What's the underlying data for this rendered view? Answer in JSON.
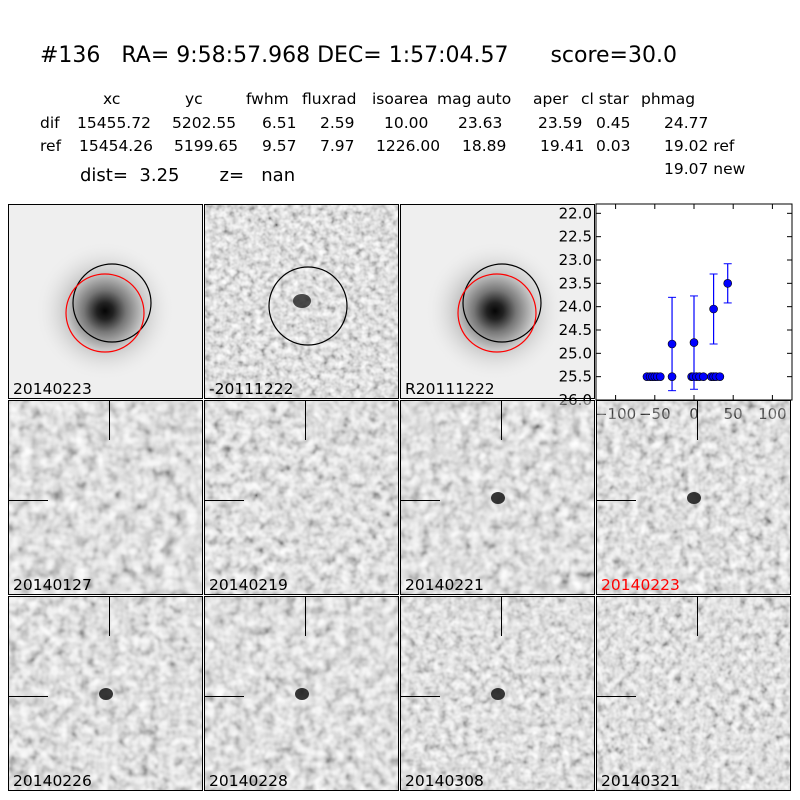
{
  "header": {
    "title": "#136   RA= 9:58:57.968 DEC= 1:57:04.57      score=30.0"
  },
  "table": {
    "columns": [
      "xc",
      "yc",
      "fwhm",
      "fluxrad",
      "isoarea",
      "mag auto",
      "aper",
      "cl star",
      "phmag"
    ],
    "rows": [
      {
        "name": "dif",
        "values": [
          "15455.72",
          "5202.55",
          "6.51",
          "2.59",
          "10.00",
          "23.63",
          "23.59",
          "0.45",
          "24.77"
        ]
      },
      {
        "name": "ref",
        "values": [
          "15454.26",
          "5199.65",
          "9.57",
          "7.97",
          "1226.00",
          "18.89",
          "19.41",
          "0.03",
          "19.02 ref"
        ]
      }
    ],
    "phmag_new": "19.07 new"
  },
  "summary": {
    "dist_label": "dist=",
    "dist_value": "3.25",
    "z_label": "z=",
    "z_value": "nan"
  },
  "stamps_top": [
    {
      "label": "20140223",
      "style": "smooth-bright"
    },
    {
      "label": "-20111222",
      "style": "noisy"
    },
    {
      "label": "R20111222",
      "style": "smooth-bright"
    }
  ],
  "stamps_grid": [
    {
      "label": "20140127",
      "highlight": false
    },
    {
      "label": "20140219",
      "highlight": false
    },
    {
      "label": "20140221",
      "highlight": false
    },
    {
      "label": "20140223",
      "highlight": true
    },
    {
      "label": "20140226",
      "highlight": false
    },
    {
      "label": "20140228",
      "highlight": false
    },
    {
      "label": "20140308",
      "highlight": false
    },
    {
      "label": "20140321",
      "highlight": false
    }
  ],
  "colors": {
    "highlight_label": "#ff0000",
    "ref_circle": "#ff0000",
    "dif_circle": "#000000",
    "points": "#0000ff"
  },
  "chart_data": {
    "type": "scatter",
    "title": "",
    "xlabel": "",
    "ylabel": "",
    "xlim": [
      -125,
      125
    ],
    "ylim": [
      26.0,
      21.8
    ],
    "y_inverted": true,
    "xticks": [
      -100,
      -50,
      0,
      50,
      100
    ],
    "xtick_labels": [
      "−100",
      "−50",
      "0",
      "50",
      "100"
    ],
    "yticks": [
      22.0,
      22.5,
      23.0,
      23.5,
      24.0,
      24.5,
      25.0,
      25.5,
      26.0
    ],
    "ytick_labels": [
      "22.0",
      "22.5",
      "23.0",
      "23.5",
      "24.0",
      "24.5",
      "25.0",
      "25.5",
      "26.0"
    ],
    "series": [
      {
        "points": [
          {
            "x": -60,
            "y": 25.5
          },
          {
            "x": -56,
            "y": 25.5
          },
          {
            "x": -53,
            "y": 25.5
          },
          {
            "x": -50,
            "y": 25.5
          },
          {
            "x": -47,
            "y": 25.5
          },
          {
            "x": -43,
            "y": 25.5
          },
          {
            "x": -28,
            "y": 24.8,
            "err": 1.0
          },
          {
            "x": -28,
            "y": 25.5
          },
          {
            "x": -3,
            "y": 25.5
          },
          {
            "x": -1,
            "y": 25.5
          },
          {
            "x": 0,
            "y": 24.77,
            "err": 1.0
          },
          {
            "x": 3,
            "y": 25.5
          },
          {
            "x": 7,
            "y": 25.5
          },
          {
            "x": 12,
            "y": 25.5
          },
          {
            "x": 22,
            "y": 25.5
          },
          {
            "x": 25,
            "y": 25.5
          },
          {
            "x": 28,
            "y": 25.5
          },
          {
            "x": 25,
            "y": 24.05,
            "err": 0.75
          },
          {
            "x": 33,
            "y": 25.5
          },
          {
            "x": 43,
            "y": 23.5,
            "err": 0.42
          }
        ]
      }
    ]
  }
}
